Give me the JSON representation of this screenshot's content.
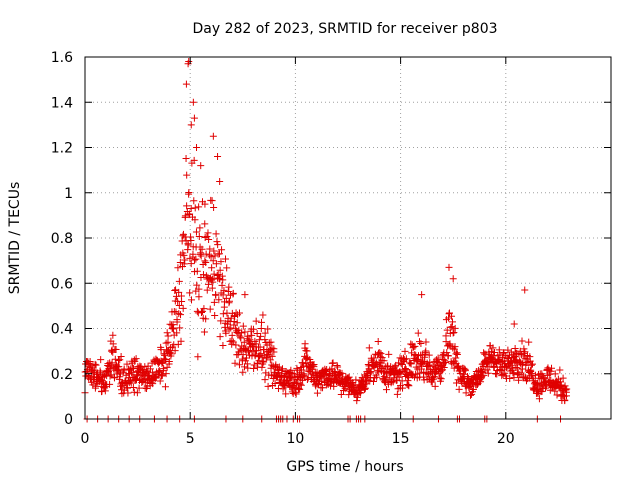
{
  "chart_data": {
    "type": "scatter",
    "title": "Day 282 of 2023, SRMTID for receiver p803",
    "xlabel": "GPS time / hours",
    "ylabel": "SRMTID / TECUs",
    "xlim": [
      0,
      25
    ],
    "ylim": [
      0,
      1.6
    ],
    "xticks": [
      0,
      5,
      10,
      15,
      20
    ],
    "xtick_labels": [
      "0",
      "5",
      "10",
      "15",
      "20"
    ],
    "yticks": [
      0,
      0.2,
      0.4,
      0.6,
      0.8,
      1,
      1.2,
      1.4,
      1.6
    ],
    "ytick_labels": [
      "0",
      "0.2",
      "0.4",
      "0.6",
      "0.8",
      "1",
      "1.2",
      "1.4",
      "1.6"
    ],
    "grid": true,
    "marker": "+",
    "marker_color": "#e00000",
    "series": [
      {
        "name": "SRMTID",
        "x_range": [
          0,
          22.9
        ],
        "profile": [
          [
            0.0,
            0.22,
            0.06
          ],
          [
            0.5,
            0.2,
            0.06
          ],
          [
            1.0,
            0.17,
            0.06
          ],
          [
            1.3,
            0.28,
            0.08
          ],
          [
            1.8,
            0.17,
            0.06
          ],
          [
            2.3,
            0.2,
            0.06
          ],
          [
            3.0,
            0.18,
            0.06
          ],
          [
            3.5,
            0.22,
            0.06
          ],
          [
            4.0,
            0.3,
            0.1
          ],
          [
            4.5,
            0.55,
            0.2
          ],
          [
            4.9,
            0.9,
            0.35
          ],
          [
            5.2,
            0.75,
            0.3
          ],
          [
            5.6,
            0.6,
            0.25
          ],
          [
            6.1,
            0.75,
            0.3
          ],
          [
            6.5,
            0.55,
            0.2
          ],
          [
            7.0,
            0.42,
            0.15
          ],
          [
            7.5,
            0.3,
            0.1
          ],
          [
            8.0,
            0.33,
            0.1
          ],
          [
            8.5,
            0.3,
            0.12
          ],
          [
            9.0,
            0.2,
            0.08
          ],
          [
            9.5,
            0.18,
            0.06
          ],
          [
            10.0,
            0.16,
            0.06
          ],
          [
            10.5,
            0.25,
            0.08
          ],
          [
            11.0,
            0.18,
            0.05
          ],
          [
            11.7,
            0.2,
            0.06
          ],
          [
            12.5,
            0.15,
            0.05
          ],
          [
            13.0,
            0.12,
            0.04
          ],
          [
            13.5,
            0.22,
            0.06
          ],
          [
            14.0,
            0.25,
            0.08
          ],
          [
            14.5,
            0.18,
            0.06
          ],
          [
            15.0,
            0.2,
            0.08
          ],
          [
            15.5,
            0.25,
            0.08
          ],
          [
            16.0,
            0.28,
            0.1
          ],
          [
            16.5,
            0.2,
            0.06
          ],
          [
            17.0,
            0.25,
            0.08
          ],
          [
            17.4,
            0.4,
            0.15
          ],
          [
            17.8,
            0.2,
            0.06
          ],
          [
            18.3,
            0.15,
            0.04
          ],
          [
            18.8,
            0.2,
            0.05
          ],
          [
            19.3,
            0.28,
            0.06
          ],
          [
            20.0,
            0.22,
            0.06
          ],
          [
            20.5,
            0.28,
            0.08
          ],
          [
            21.0,
            0.25,
            0.08
          ],
          [
            21.5,
            0.15,
            0.05
          ],
          [
            22.0,
            0.18,
            0.06
          ],
          [
            22.5,
            0.15,
            0.06
          ],
          [
            22.9,
            0.12,
            0.05
          ]
        ],
        "peaks": [
          [
            4.82,
            1.48
          ],
          [
            4.9,
            1.57
          ],
          [
            4.93,
            1.58
          ],
          [
            5.05,
            1.3
          ],
          [
            5.15,
            1.4
          ],
          [
            5.2,
            1.33
          ],
          [
            5.3,
            1.2
          ],
          [
            5.5,
            1.12
          ],
          [
            5.7,
            0.95
          ],
          [
            6.1,
            1.25
          ],
          [
            6.3,
            1.16
          ],
          [
            6.4,
            1.05
          ],
          [
            7.6,
            0.55
          ],
          [
            16.0,
            0.55
          ],
          [
            17.3,
            0.67
          ],
          [
            17.5,
            0.62
          ],
          [
            20.9,
            0.57
          ],
          [
            20.4,
            0.42
          ]
        ],
        "zero_values_x": [
          0.1,
          0.6,
          1.1,
          1.6,
          2.1,
          2.6,
          3.3,
          3.9,
          4.5,
          5.2,
          6.7,
          7.5,
          8.4,
          9.1,
          9.2,
          9.3,
          9.4,
          9.6,
          9.9,
          10.1,
          10.2,
          12.5,
          12.6,
          12.9,
          13.0,
          13.1,
          13.3,
          15.6,
          16.8,
          17.7,
          17.8,
          19.0,
          19.1,
          21.5,
          22.6
        ]
      }
    ]
  }
}
